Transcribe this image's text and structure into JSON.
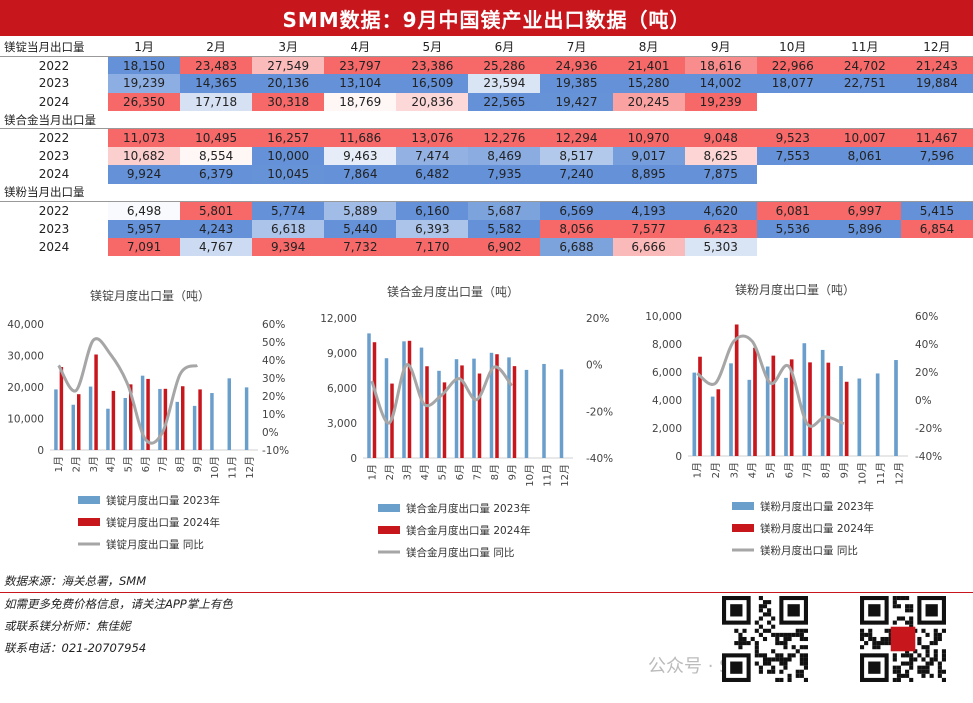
{
  "title": "SMM数据：9月中国镁产业出口数据（吨）",
  "months": [
    "1月",
    "2月",
    "3月",
    "4月",
    "5月",
    "6月",
    "7月",
    "8月",
    "9月",
    "10月",
    "11月",
    "12月"
  ],
  "tables": [
    {
      "label": "镁锭当月出口量",
      "rows": [
        {
          "year": "2022",
          "values": [
            18150,
            23483,
            27549,
            23797,
            23386,
            25286,
            24936,
            21401,
            18616,
            22966,
            24702,
            21243
          ]
        },
        {
          "year": "2023",
          "values": [
            19239,
            14365,
            20136,
            13104,
            16509,
            23594,
            19385,
            15280,
            14002,
            18077,
            22751,
            19884
          ]
        },
        {
          "year": "2024",
          "values": [
            26350,
            17718,
            30318,
            18769,
            20836,
            22565,
            19427,
            20245,
            19239,
            null,
            null,
            null
          ]
        }
      ]
    },
    {
      "label": "镁合金当月出口量",
      "rows": [
        {
          "year": "2022",
          "values": [
            11073,
            10495,
            16257,
            11686,
            13076,
            12276,
            12294,
            10970,
            9048,
            9523,
            10007,
            11467
          ]
        },
        {
          "year": "2023",
          "values": [
            10682,
            8554,
            10000,
            9463,
            7474,
            8469,
            8517,
            9017,
            8625,
            7553,
            8061,
            7596
          ]
        },
        {
          "year": "2024",
          "values": [
            9924,
            6379,
            10045,
            7864,
            6482,
            7935,
            7240,
            8895,
            7875,
            null,
            null,
            null
          ]
        }
      ]
    },
    {
      "label": "镁粉当月出口量",
      "rows": [
        {
          "year": "2022",
          "values": [
            6498,
            5801,
            5774,
            5889,
            6160,
            5687,
            6569,
            4193,
            4620,
            6081,
            6997,
            5415
          ]
        },
        {
          "year": "2023",
          "values": [
            5957,
            4243,
            6618,
            5440,
            6393,
            5582,
            8056,
            7577,
            6423,
            5536,
            5896,
            6854
          ]
        },
        {
          "year": "2024",
          "values": [
            7091,
            4767,
            9394,
            7732,
            7170,
            6902,
            6688,
            6666,
            5303,
            null,
            null,
            null
          ]
        }
      ]
    }
  ],
  "chart_data": [
    {
      "type": "bar",
      "title": "镁锭月度出口量（吨）",
      "categories": [
        "1月",
        "2月",
        "3月",
        "4月",
        "5月",
        "6月",
        "7月",
        "8月",
        "9月",
        "10月",
        "11月",
        "12月"
      ],
      "ylim": [
        0,
        40000
      ],
      "yticks": [
        "0",
        "10,000",
        "20,000",
        "30,000",
        "40,000"
      ],
      "y2lim": [
        -10,
        60
      ],
      "y2ticks": [
        "-10%",
        "0%",
        "10%",
        "20%",
        "30%",
        "40%",
        "50%",
        "60%"
      ],
      "series": [
        {
          "name": "镁锭月度出口量 2023年",
          "color": "#6a9ecb",
          "values": [
            19239,
            14365,
            20136,
            13104,
            16509,
            23594,
            19385,
            15280,
            14002,
            18077,
            22751,
            19884
          ]
        },
        {
          "name": "镁锭月度出口量 2024年",
          "color": "#c8161d",
          "values": [
            26350,
            17718,
            30318,
            18769,
            20836,
            22565,
            19427,
            20245,
            19239,
            null,
            null,
            null
          ]
        },
        {
          "name": "镁锭月度出口量 同比",
          "color": "#a6a6a6",
          "type": "line",
          "axis": "right",
          "values": [
            37,
            23,
            51,
            43,
            26,
            -4,
            0,
            32,
            37,
            null,
            null,
            null
          ]
        }
      ]
    },
    {
      "type": "bar",
      "title": "镁合金月度出口量（吨）",
      "categories": [
        "1月",
        "2月",
        "3月",
        "4月",
        "5月",
        "6月",
        "7月",
        "8月",
        "9月",
        "10月",
        "11月",
        "12月"
      ],
      "ylim": [
        0,
        12000
      ],
      "yticks": [
        "0",
        "3,000",
        "6,000",
        "9,000",
        "12,000"
      ],
      "y2lim": [
        -40,
        20
      ],
      "y2ticks": [
        "-40%",
        "-20%",
        "0%",
        "20%"
      ],
      "series": [
        {
          "name": "镁合金月度出口量 2023年",
          "color": "#6a9ecb",
          "values": [
            10682,
            8554,
            10000,
            9463,
            7474,
            8469,
            8517,
            9017,
            8625,
            7553,
            8061,
            7596
          ]
        },
        {
          "name": "镁合金月度出口量 2024年",
          "color": "#c8161d",
          "values": [
            9924,
            6379,
            10045,
            7864,
            6482,
            7935,
            7240,
            8895,
            7875,
            null,
            null,
            null
          ]
        },
        {
          "name": "镁合金月度出口量 同比",
          "color": "#a6a6a6",
          "type": "line",
          "axis": "right",
          "values": [
            -7,
            -25,
            0,
            -17,
            -13,
            -6,
            -15,
            -1,
            -9,
            null,
            null,
            null
          ]
        }
      ]
    },
    {
      "type": "bar",
      "title": "镁粉月度出口量（吨）",
      "categories": [
        "1月",
        "2月",
        "3月",
        "4月",
        "5月",
        "6月",
        "7月",
        "8月",
        "9月",
        "10月",
        "11月",
        "12月"
      ],
      "ylim": [
        0,
        10000
      ],
      "yticks": [
        "0",
        "2,000",
        "4,000",
        "6,000",
        "8,000",
        "10,000"
      ],
      "y2lim": [
        -40,
        60
      ],
      "y2ticks": [
        "-40%",
        "-20%",
        "0%",
        "20%",
        "40%",
        "60%"
      ],
      "series": [
        {
          "name": "镁粉月度出口量 2023年",
          "color": "#6a9ecb",
          "values": [
            5957,
            4243,
            6618,
            5440,
            6393,
            5582,
            8056,
            7577,
            6423,
            5536,
            5896,
            6854
          ]
        },
        {
          "name": "镁粉月度出口量 2024年",
          "color": "#c8161d",
          "values": [
            7091,
            4767,
            9394,
            7732,
            7170,
            6902,
            6688,
            6666,
            5303,
            null,
            null,
            null
          ]
        },
        {
          "name": "镁粉月度出口量 同比",
          "color": "#a6a6a6",
          "type": "line",
          "axis": "right",
          "values": [
            19,
            12,
            42,
            42,
            12,
            24,
            -17,
            -12,
            -17,
            null,
            null,
            null
          ]
        }
      ]
    }
  ],
  "footer": {
    "source": "数据来源：海关总署，SMM",
    "line1": "如需更多免费价格信息，请关注APP掌上有色",
    "line2": "或联系镁分析师：焦佳妮",
    "line3": "联系电话：021-20707954",
    "watermark": "公众号 · SMM"
  },
  "colors": {
    "accent": "#c8161d",
    "blue": "#6a9ecb",
    "gray": "#a6a6a6"
  }
}
